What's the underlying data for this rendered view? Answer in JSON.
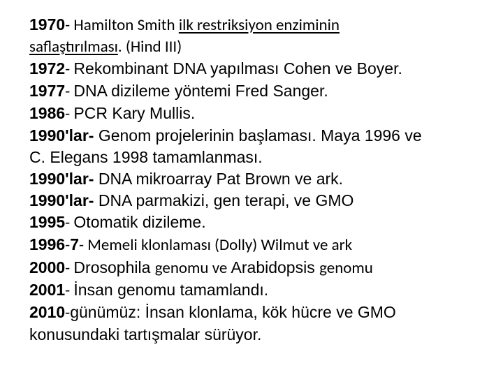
{
  "timeline": {
    "l1_year": "1970",
    "l1_dash": "- ",
    "l1_name": "Hamilton Smith ",
    "l1_rest_u": "ilk restriksiyon enziminin",
    "l2_u1": "saflaştırılması",
    "l2_dot": ". (Hind III)",
    "l3_b": "1972",
    "l3_dash": "- ",
    "l3_t": "Rekombinant DNA yapılması Cohen ve Boyer.",
    "l4_b": "1977",
    "l4_dash": "- ",
    "l4_t": "DNA dizileme yöntemi Fred Sanger.",
    "l5_b": "1986",
    "l5_dash": "- ",
    "l5_t": "PCR Kary Mullis.",
    "l6_b": "1990'lar-",
    "l6_t": " Genom projelerinin başlaması. Maya 1996 ve",
    "l7_t": "C. Elegans 1998 tamamlanması.",
    "l8_b": "1990'lar-",
    "l8_t": " DNA mikroarray Pat Brown ve ark.",
    "l9_b": "1990'lar-",
    "l9_t": " DNA parmakizi, gen terapi, ve GMO",
    "l10_b": "1995",
    "l10_dash": "- ",
    "l10_t": "Otomatik dizileme.",
    "l11_b": "1996",
    "l11_dash": "-",
    "l11_b2": "7",
    "l11_dash2": "- ",
    "l11_t": "Memeli klonlaması (Dolly) Wilmut ve ark",
    "l12_b": "2000",
    "l12_dash": "- ",
    "l12_t1": "Drosophila ",
    "l12_mid": "genomu ve ",
    "l12_t2": "Arabidopsis ",
    "l12_end": "genomu",
    "l13_b": "2001",
    "l13_dash": "- ",
    "l13_t": "İnsan genomu tamamlandı.",
    "l14_b": "2010",
    "l14_dash": "-",
    "l14_t": "günümüz: İnsan klonlama, kök hücre ve GMO",
    "l15_t": "konusundaki tartışmalar sürüyor."
  }
}
